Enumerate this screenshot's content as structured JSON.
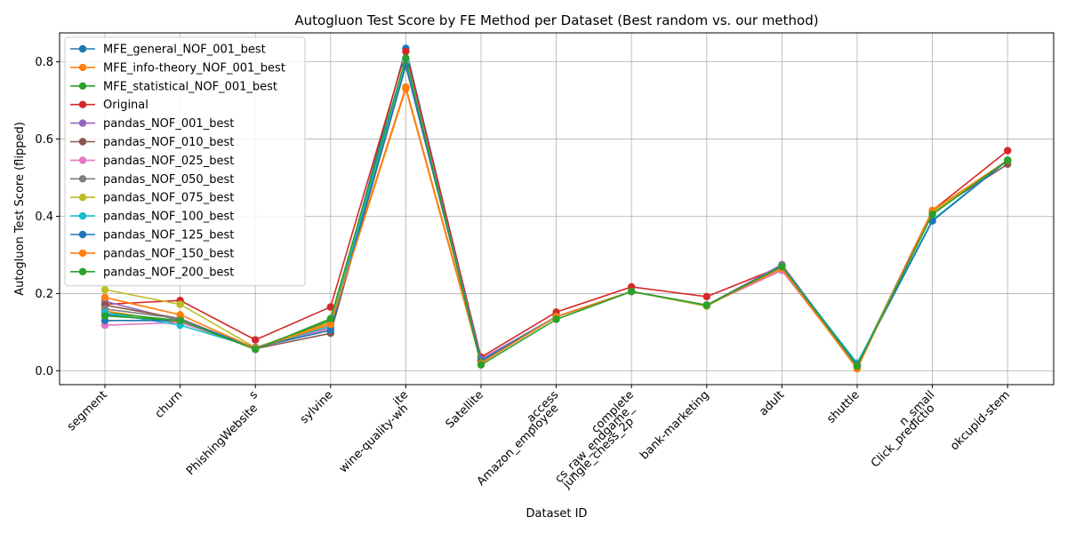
{
  "chart_data": {
    "type": "line",
    "title": "Autogluon Test Score by FE Method per Dataset (Best random vs. our method)",
    "xlabel": "Dataset ID",
    "ylabel": "Autogluon Test Score (flipped)",
    "ylim": [
      -0.036,
      0.875
    ],
    "yticks": [
      "0.0",
      "0.2",
      "0.4",
      "0.6",
      "0.8"
    ],
    "grid": true,
    "legend_position": "upper-left",
    "categories": [
      [
        "segment"
      ],
      [
        "churn"
      ],
      [
        "PhishingWebsite",
        "s"
      ],
      [
        "sylvine"
      ],
      [
        "wine-quality-wh",
        "ite"
      ],
      [
        "Satellite"
      ],
      [
        "Amazon_employee",
        "_access"
      ],
      [
        "jungle_chess_2p",
        "cs_raw_endgame_",
        "complete"
      ],
      [
        "bank-marketing"
      ],
      [
        "adult"
      ],
      [
        "shuttle"
      ],
      [
        "Click_predictio",
        "n_small"
      ],
      [
        "okcupid-stem"
      ]
    ],
    "series": [
      {
        "name": "MFE_general_NOF_001_best",
        "color": "#1f77b4",
        "values": [
          0.145,
          0.125,
          0.06,
          0.12,
          0.835,
          0.03,
          null,
          null,
          null,
          null,
          null,
          null,
          null
        ]
      },
      {
        "name": "MFE_info-theory_NOF_001_best",
        "color": "#ff7f0e",
        "values": [
          0.155,
          0.125,
          0.06,
          0.125,
          0.735,
          0.025,
          null,
          null,
          null,
          null,
          null,
          null,
          null
        ]
      },
      {
        "name": "MFE_statistical_NOF_001_best",
        "color": "#2ca02c",
        "values": [
          0.15,
          0.13,
          0.058,
          0.13,
          0.8,
          0.025,
          null,
          null,
          null,
          null,
          null,
          null,
          null
        ]
      },
      {
        "name": "Original",
        "color": "#d62728",
        "values": [
          0.172,
          0.182,
          0.08,
          0.165,
          0.827,
          0.035,
          0.152,
          0.217,
          0.192,
          0.27,
          0.015,
          0.415,
          0.57
        ]
      },
      {
        "name": "pandas_NOF_001_best",
        "color": "#9467bd",
        "values": [
          0.18,
          0.13,
          0.06,
          0.11,
          0.8,
          0.03,
          0.14,
          0.205,
          0.17,
          0.275,
          0.015,
          0.41,
          0.545
        ]
      },
      {
        "name": "pandas_NOF_010_best",
        "color": "#8c564b",
        "values": [
          0.17,
          0.135,
          0.057,
          0.097,
          0.79,
          0.025,
          0.14,
          0.205,
          0.17,
          0.26,
          0.01,
          0.41,
          0.535
        ]
      },
      {
        "name": "pandas_NOF_025_best",
        "color": "#e377c2",
        "values": [
          0.118,
          0.125,
          0.06,
          0.11,
          0.8,
          0.025,
          0.14,
          0.205,
          0.17,
          0.26,
          0.01,
          0.41,
          0.545
        ]
      },
      {
        "name": "pandas_NOF_050_best",
        "color": "#7f7f7f",
        "values": [
          0.16,
          0.135,
          0.058,
          0.115,
          0.8,
          0.025,
          0.14,
          0.205,
          0.17,
          0.27,
          0.015,
          0.41,
          0.545
        ]
      },
      {
        "name": "pandas_NOF_075_best",
        "color": "#bcbd22",
        "values": [
          0.21,
          0.172,
          0.06,
          0.12,
          0.8,
          0.025,
          0.14,
          0.205,
          0.167,
          0.27,
          0.015,
          0.41,
          0.545
        ]
      },
      {
        "name": "pandas_NOF_100_best",
        "color": "#17becf",
        "values": [
          0.15,
          0.118,
          0.06,
          0.115,
          0.805,
          0.025,
          0.14,
          0.205,
          0.17,
          0.27,
          0.02,
          0.39,
          0.545
        ]
      },
      {
        "name": "pandas_NOF_125_best",
        "color": "#1f77b4",
        "values": [
          0.13,
          0.13,
          0.06,
          0.105,
          0.79,
          0.025,
          0.14,
          0.205,
          0.17,
          0.27,
          0.015,
          0.388,
          0.545
        ]
      },
      {
        "name": "pandas_NOF_150_best",
        "color": "#ff7f0e",
        "values": [
          0.19,
          0.145,
          0.058,
          0.12,
          0.73,
          0.02,
          0.14,
          0.205,
          0.17,
          0.265,
          0.005,
          0.415,
          0.545
        ]
      },
      {
        "name": "pandas_NOF_200_best",
        "color": "#2ca02c",
        "values": [
          0.142,
          0.13,
          0.055,
          0.135,
          0.81,
          0.015,
          0.133,
          0.205,
          0.17,
          0.27,
          0.012,
          0.405,
          0.545
        ]
      }
    ]
  }
}
